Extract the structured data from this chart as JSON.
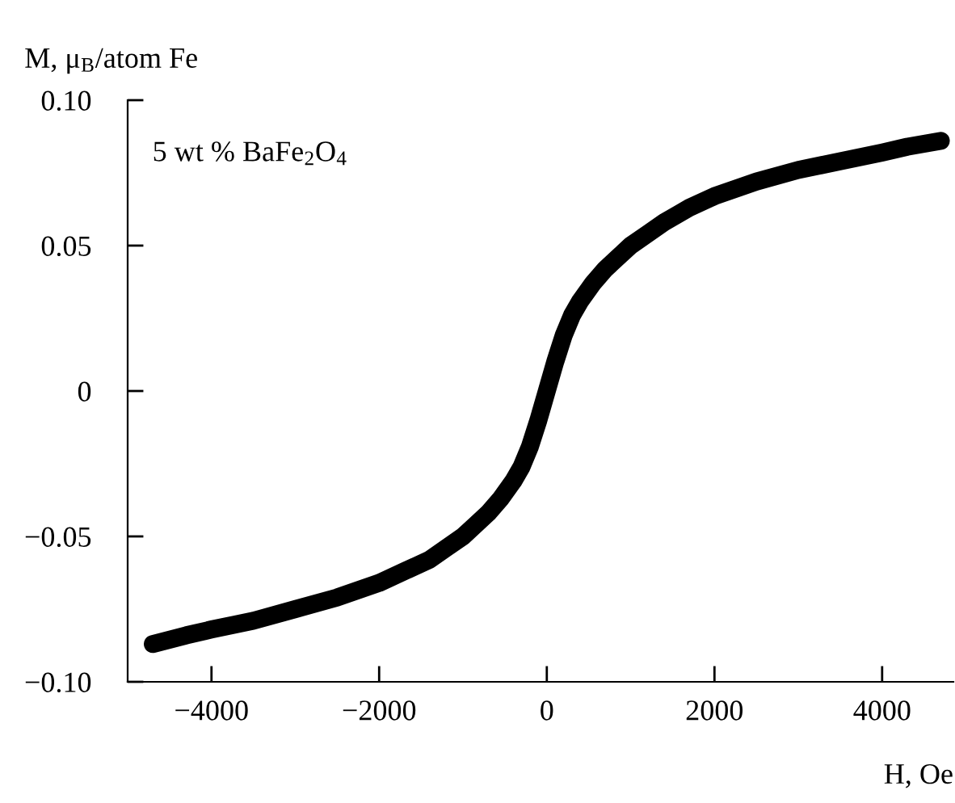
{
  "chart_data": {
    "type": "line",
    "xlabel": "H, Oe",
    "ylabel": "M, μ$_{B}$/atom Fe",
    "annotations": [
      "5 wt % BaFe$_{2}$O$_{4}$"
    ],
    "x": [
      -4700,
      -4300,
      -4000,
      -3500,
      -3000,
      -2500,
      -2000,
      -1700,
      -1400,
      -1200,
      -1000,
      -850,
      -700,
      -550,
      -400,
      -300,
      -200,
      -100,
      0,
      100,
      200,
      300,
      400,
      550,
      700,
      850,
      1000,
      1200,
      1400,
      1700,
      2000,
      2500,
      3000,
      3500,
      4000,
      4300,
      4700
    ],
    "series": [
      {
        "color": "#000000",
        "values": [
          -0.087,
          -0.084,
          -0.082,
          -0.079,
          -0.075,
          -0.071,
          -0.066,
          -0.062,
          -0.058,
          -0.054,
          -0.05,
          -0.046,
          -0.042,
          -0.037,
          -0.031,
          -0.026,
          -0.019,
          -0.01,
          0.0,
          0.01,
          0.019,
          0.026,
          0.031,
          0.037,
          0.042,
          0.046,
          0.05,
          0.054,
          0.058,
          0.063,
          0.067,
          0.072,
          0.076,
          0.079,
          0.082,
          0.084,
          0.086
        ]
      }
    ],
    "xlim": [
      -5000,
      4850
    ],
    "xticks": [
      {
        "value": -4000,
        "label": "−4000"
      },
      {
        "value": -2000,
        "label": "−2000"
      },
      0,
      2000,
      4000
    ],
    "ylim": [
      -0.1,
      0.1
    ],
    "yticks": [
      {
        "value": -0.1,
        "label": "−0.10"
      },
      {
        "value": -0.05,
        "label": "−0.05"
      },
      0,
      0.05,
      {
        "value": 0.1,
        "label": "0.10"
      }
    ],
    "grid": false,
    "legend": false,
    "line_style": "solid"
  }
}
